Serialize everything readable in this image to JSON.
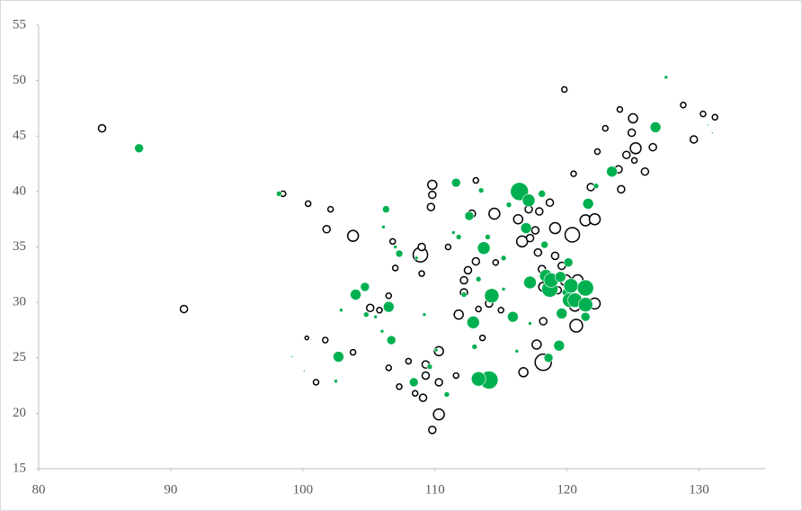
{
  "chart_data": {
    "type": "bubble",
    "xlim": [
      80,
      135
    ],
    "xticks": [
      80,
      90,
      100,
      110,
      120,
      130
    ],
    "ylim": [
      15,
      55
    ],
    "yticks": [
      15,
      20,
      25,
      30,
      35,
      40,
      45,
      50,
      55
    ],
    "series": [
      {
        "color": "#000000",
        "filled": false,
        "x": [
          84.8,
          91.0,
          98.5,
          100.4,
          101.8,
          102.1,
          100.3,
          101.7,
          101.0,
          103.8,
          103.8,
          105.1,
          105.8,
          106.5,
          106.8,
          107.0,
          106.5,
          107.3,
          108.0,
          108.5,
          108.9,
          109.0,
          109.0,
          109.1,
          109.3,
          109.3,
          109.7,
          109.8,
          109.8,
          109.8,
          110.3,
          110.3,
          110.3,
          111.0,
          111.6,
          111.8,
          112.2,
          112.2,
          112.5,
          113.1,
          112.8,
          113.1,
          113.3,
          113.6,
          114.1,
          114.5,
          114.6,
          115.0,
          116.3,
          116.6,
          117.1,
          117.6,
          117.8,
          117.9,
          118.1,
          118.2,
          118.2,
          117.7,
          116.7,
          117.2,
          118.2,
          118.7,
          119.1,
          119.1,
          119.3,
          119.6,
          119.9,
          120.4,
          120.7,
          120.6,
          120.8,
          121.4,
          122.1,
          122.1,
          121.8,
          122.3,
          119.8,
          120.5,
          122.9,
          124.0,
          124.1,
          123.9,
          124.5,
          125.0,
          124.9,
          125.1,
          125.2,
          125.9,
          126.5,
          128.8,
          129.6,
          130.3,
          131.2
        ],
        "values": [
          45.7,
          29.4,
          39.8,
          38.9,
          36.6,
          38.4,
          26.8,
          26.6,
          22.8,
          36.0,
          25.5,
          29.5,
          29.3,
          30.6,
          35.5,
          33.1,
          24.1,
          22.4,
          24.7,
          21.8,
          34.3,
          35.0,
          32.6,
          21.4,
          24.4,
          23.4,
          38.6,
          40.6,
          39.7,
          18.5,
          25.6,
          19.9,
          22.8,
          35.0,
          23.4,
          28.9,
          32.0,
          30.9,
          32.9,
          41.0,
          38.0,
          33.7,
          29.4,
          26.8,
          29.9,
          38.0,
          33.6,
          29.3,
          37.5,
          35.5,
          38.4,
          36.5,
          34.5,
          38.2,
          33.0,
          31.4,
          24.6,
          26.2,
          23.7,
          35.8,
          28.3,
          39.0,
          34.2,
          36.7,
          31.1,
          33.3,
          32.0,
          36.1,
          27.9,
          29.7,
          32.0,
          37.4,
          37.5,
          29.9,
          40.4,
          43.6,
          49.2,
          41.6,
          45.7,
          47.4,
          40.2,
          42.0,
          43.3,
          46.6,
          45.3,
          42.8,
          43.9,
          41.8,
          44.0,
          47.8,
          44.7,
          47.0,
          46.7
        ],
        "sizes": [
          16,
          16,
          9,
          9,
          16,
          9,
          4,
          9,
          9,
          36,
          9,
          16,
          9,
          9,
          9,
          9,
          9,
          9,
          9,
          9,
          64,
          16,
          9,
          16,
          16,
          16,
          16,
          25,
          16,
          16,
          25,
          36,
          16,
          9,
          9,
          25,
          16,
          16,
          16,
          9,
          16,
          16,
          9,
          9,
          16,
          36,
          9,
          9,
          25,
          36,
          16,
          16,
          16,
          16,
          16,
          25,
          81,
          25,
          25,
          16,
          16,
          16,
          16,
          36,
          16,
          16,
          36,
          64,
          49,
          36,
          36,
          36,
          36,
          36,
          16,
          9,
          9,
          9,
          9,
          9,
          16,
          16,
          16,
          25,
          16,
          9,
          36,
          16,
          16,
          9,
          16,
          9,
          9
        ]
      },
      {
        "color": "#00b050",
        "filled": true,
        "x": [
          87.6,
          98.2,
          99.2,
          100.1,
          104.0,
          104.7,
          102.7,
          102.5,
          102.9,
          104.8,
          105.5,
          106.5,
          106.7,
          106.0,
          106.3,
          106.1,
          107.0,
          107.3,
          108.4,
          108.6,
          109.2,
          109.6,
          110.1,
          110.9,
          111.6,
          111.8,
          112.2,
          112.6,
          112.9,
          113.0,
          113.3,
          113.5,
          113.7,
          114.0,
          114.3,
          114.1,
          113.3,
          115.2,
          115.6,
          115.9,
          116.4,
          117.1,
          116.9,
          117.2,
          118.1,
          118.3,
          118.4,
          118.7,
          118.8,
          119.5,
          119.4,
          118.6,
          119.6,
          120.1,
          119.9,
          120.3,
          120.2,
          120.6,
          121.4,
          121.4,
          121.4,
          121.6,
          122.2,
          123.4,
          126.7,
          127.5,
          130.7,
          131.0,
          115.2,
          116.2,
          111.4,
          117.2
        ],
        "values": [
          43.9,
          39.8,
          25.1,
          23.8,
          30.7,
          31.4,
          25.1,
          22.9,
          29.3,
          28.9,
          28.7,
          29.6,
          26.6,
          27.4,
          38.4,
          36.8,
          35.0,
          34.4,
          22.8,
          34.0,
          28.9,
          24.2,
          25.7,
          21.7,
          40.8,
          35.9,
          30.7,
          37.8,
          28.2,
          26.0,
          32.1,
          40.1,
          34.9,
          35.9,
          30.6,
          23.0,
          23.1,
          34.0,
          38.8,
          28.7,
          40.0,
          39.2,
          36.7,
          31.8,
          39.8,
          35.2,
          32.4,
          31.2,
          32.0,
          32.3,
          26.1,
          25.0,
          29.0,
          33.6,
          30.9,
          31.5,
          30.2,
          30.2,
          31.3,
          29.8,
          28.7,
          38.9,
          40.5,
          41.8,
          45.8,
          50.3,
          46.0,
          45.3,
          31.2,
          25.6,
          36.3,
          28.1
        ],
        "sizes": [
          25,
          9,
          1,
          1,
          36,
          25,
          36,
          4,
          4,
          9,
          4,
          36,
          25,
          4,
          16,
          4,
          4,
          16,
          25,
          4,
          4,
          9,
          4,
          9,
          25,
          9,
          9,
          25,
          49,
          9,
          9,
          9,
          49,
          9,
          64,
          100,
          64,
          9,
          9,
          36,
          100,
          49,
          36,
          49,
          16,
          16,
          49,
          81,
          64,
          36,
          36,
          25,
          36,
          25,
          16,
          64,
          64,
          64,
          81,
          64,
          25,
          36,
          9,
          36,
          36,
          4,
          1,
          1,
          4,
          4,
          4,
          4
        ]
      }
    ]
  }
}
